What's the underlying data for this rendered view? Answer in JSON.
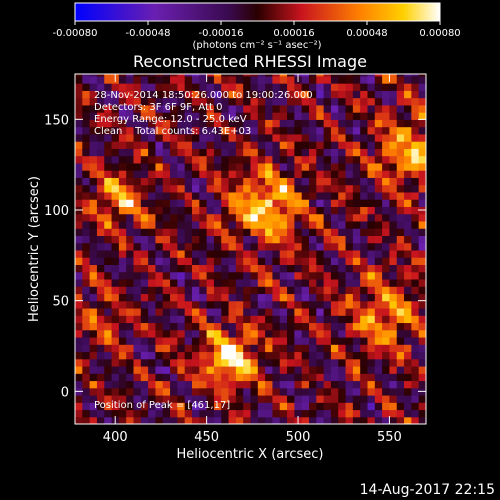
{
  "chart_data": {
    "type": "heatmap",
    "title": "Reconstructed RHESSI Image",
    "xlabel": "Heliocentric X (arcsec)",
    "ylabel": "Heliocentric Y (arcsec)",
    "xlim": [
      378,
      570
    ],
    "ylim": [
      -18,
      175
    ],
    "xticks": [
      400,
      450,
      500,
      550
    ],
    "yticks": [
      0,
      50,
      100,
      150
    ],
    "colorbar": {
      "label": "(photons cm⁻² s⁻¹ asec⁻²)",
      "range": [
        -0.0008,
        0.0008
      ],
      "tick_labels": [
        "-0.00080",
        "-0.00048",
        "-0.00016",
        "0.00016",
        "0.00048",
        "0.00080"
      ],
      "colormap": [
        "#0000ff",
        "#6a1fb0",
        "#3a0a50",
        "#2a0000",
        "#c8141e",
        "#ff8000",
        "#ffd000",
        "#ffffff"
      ]
    },
    "info_lines": [
      "28-Nov-2014 18:50:26.000 to 19:00:26.000",
      "Detectors: 3F 6F 9F, Att 0",
      "Energy Range: 12.0 - 25.0 keV",
      "Clean    Total counts: 6.43E+03"
    ],
    "peak_label": "Position of Peak = [461,17]",
    "peak": [
      461,
      17
    ],
    "sources": [
      {
        "x": 461,
        "y": 17,
        "amp": 0.00072,
        "sigma": 11
      },
      {
        "x": 480,
        "y": 100,
        "amp": 0.0006,
        "sigma": 14
      },
      {
        "x": 400,
        "y": 105,
        "amp": 0.00045,
        "sigma": 10
      },
      {
        "x": 560,
        "y": 130,
        "amp": 0.0005,
        "sigma": 14
      },
      {
        "x": 545,
        "y": 40,
        "amp": 0.00045,
        "sigma": 14
      },
      {
        "x": 390,
        "y": 40,
        "amp": 0.0003,
        "sigma": 10
      }
    ]
  },
  "timestamp": "14-Aug-2017 22:15"
}
